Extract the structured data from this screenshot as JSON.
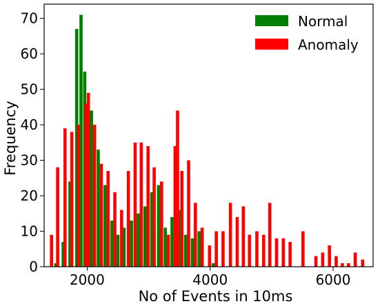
{
  "chart_data": {
    "type": "bar",
    "xlabel": "No of Events in 10ms",
    "ylabel": "Frequency",
    "xlim": [
      1300,
      6650
    ],
    "ylim": [
      0,
      74
    ],
    "xticks": [
      2000,
      4000,
      6000
    ],
    "yticks": [
      0,
      10,
      20,
      30,
      40,
      50,
      60,
      70
    ],
    "legend_position": "top-right",
    "grid": false,
    "series": [
      {
        "name": "Normal",
        "color": "#008000",
        "x": [
          1490,
          1610,
          1720,
          1830,
          1900,
          1960,
          2070,
          2180,
          2290,
          2400,
          2500,
          2600,
          2720,
          2830,
          2940,
          3050,
          3160,
          3270,
          3380,
          3500,
          3600,
          3710,
          3820,
          3930,
          4050
        ],
        "values": [
          1,
          7,
          24,
          67,
          71,
          55,
          44,
          33,
          23,
          13,
          9,
          11,
          13,
          15,
          17,
          21,
          23,
          11,
          14,
          16,
          9,
          8,
          10,
          0,
          1
        ]
      },
      {
        "name": "Anomaly",
        "color": "#ff0000",
        "x": [
          1420,
          1520,
          1640,
          1750,
          1860,
          1980,
          2020,
          2120,
          2230,
          2340,
          2450,
          2560,
          2670,
          2780,
          2880,
          2990,
          3090,
          3210,
          3320,
          3430,
          3470,
          3540,
          3650,
          3760,
          3870,
          3990,
          4100,
          4210,
          4330,
          4440,
          4540,
          4640,
          4760,
          4870,
          4970,
          5080,
          5190,
          5300,
          5510,
          5720,
          5830,
          5940,
          6050,
          6150,
          6250,
          6360,
          6480
        ],
        "values": [
          9,
          28,
          39,
          38,
          40,
          46,
          49,
          40,
          29,
          27,
          21,
          16,
          27,
          35,
          35,
          34,
          28,
          24,
          9,
          34,
          44,
          27,
          30,
          18,
          11,
          6,
          10,
          10,
          18,
          14,
          17,
          9,
          10,
          9,
          18,
          8,
          8,
          7,
          10,
          3,
          4,
          6,
          3,
          1,
          1,
          4,
          2
        ]
      }
    ]
  }
}
